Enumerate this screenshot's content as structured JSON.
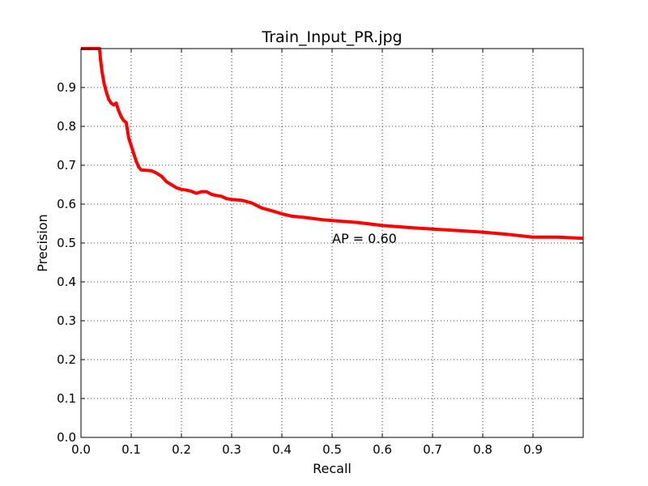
{
  "chart_data": {
    "type": "line",
    "title": "Train_Input_PR.jpg",
    "xlabel": "Recall",
    "ylabel": "Precision",
    "xlim": [
      0,
      1.0
    ],
    "ylim": [
      0,
      1.0
    ],
    "grid": true,
    "x_ticks": [
      "0.0",
      "0.1",
      "0.2",
      "0.3",
      "0.4",
      "0.5",
      "0.6",
      "0.7",
      "0.8",
      "0.9"
    ],
    "y_ticks": [
      "0.0",
      "0.1",
      "0.2",
      "0.3",
      "0.4",
      "0.5",
      "0.6",
      "0.7",
      "0.8",
      "0.9"
    ],
    "annotation": {
      "text": "AP = 0.60",
      "x": 0.5,
      "y": 0.5
    },
    "series": [
      {
        "color": "#ff0000",
        "x": [
          0.0,
          0.037,
          0.039,
          0.042,
          0.046,
          0.05,
          0.055,
          0.06,
          0.065,
          0.07,
          0.075,
          0.08,
          0.085,
          0.09,
          0.095,
          0.1,
          0.105,
          0.11,
          0.115,
          0.12,
          0.13,
          0.14,
          0.15,
          0.16,
          0.17,
          0.18,
          0.19,
          0.2,
          0.21,
          0.22,
          0.23,
          0.24,
          0.25,
          0.26,
          0.27,
          0.28,
          0.29,
          0.3,
          0.32,
          0.34,
          0.36,
          0.38,
          0.4,
          0.42,
          0.45,
          0.48,
          0.5,
          0.55,
          0.6,
          0.65,
          0.7,
          0.75,
          0.8,
          0.85,
          0.9,
          0.95,
          1.0
        ],
        "y": [
          1.0,
          1.0,
          0.97,
          0.94,
          0.91,
          0.89,
          0.87,
          0.86,
          0.855,
          0.86,
          0.84,
          0.825,
          0.815,
          0.81,
          0.77,
          0.75,
          0.73,
          0.71,
          0.695,
          0.688,
          0.687,
          0.686,
          0.68,
          0.672,
          0.658,
          0.65,
          0.642,
          0.638,
          0.636,
          0.633,
          0.628,
          0.632,
          0.632,
          0.625,
          0.622,
          0.62,
          0.614,
          0.612,
          0.61,
          0.603,
          0.59,
          0.583,
          0.575,
          0.569,
          0.565,
          0.56,
          0.558,
          0.553,
          0.545,
          0.54,
          0.536,
          0.532,
          0.528,
          0.522,
          0.515,
          0.515,
          0.512
        ]
      }
    ]
  }
}
